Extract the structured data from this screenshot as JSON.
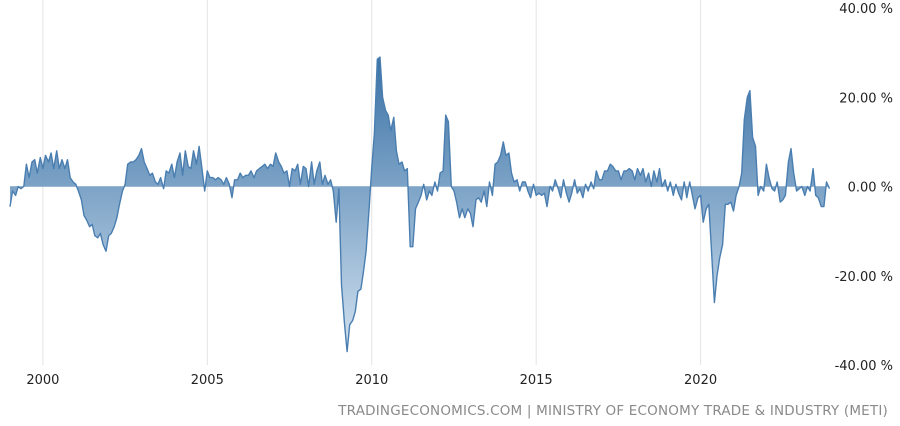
{
  "colors": {
    "line": "#4a7eb0",
    "fill_top": "#2f6aa1",
    "fill_bottom": "#cfe0ef",
    "grid": "#e3e3e3",
    "text": "#222222",
    "source": "#8a8a8a"
  },
  "source_text": "TRADINGECONOMICS.COM | MINISTRY OF ECONOMY TRADE & INDUSTRY (METI)",
  "chart_data": {
    "type": "area",
    "title": "",
    "xlabel": "",
    "ylabel": "",
    "xlim": [
      1999.0,
      2024.3
    ],
    "ylim": [
      -40,
      40
    ],
    "grid": true,
    "grid_axis": "x",
    "y_axis_position": "right",
    "legend": "none",
    "x_ticks": [
      {
        "value": 2000,
        "label": "2000"
      },
      {
        "value": 2005,
        "label": "2005"
      },
      {
        "value": 2010,
        "label": "2010"
      },
      {
        "value": 2015,
        "label": "2015"
      },
      {
        "value": 2020,
        "label": "2020"
      }
    ],
    "y_ticks": [
      {
        "value": 40,
        "label": "40.00 %"
      },
      {
        "value": 20,
        "label": "20.00 %"
      },
      {
        "value": 0,
        "label": "0.00 %"
      },
      {
        "value": -20,
        "label": "-20.00 %"
      },
      {
        "value": -40,
        "label": "-40.00 %"
      }
    ],
    "series": [
      {
        "points": [
          [
            1999.0,
            -4.5
          ],
          [
            1999.08,
            -1
          ],
          [
            1999.17,
            -2
          ],
          [
            1999.25,
            0
          ],
          [
            1999.33,
            -0.5
          ],
          [
            1999.42,
            0
          ],
          [
            1999.5,
            5
          ],
          [
            1999.58,
            2
          ],
          [
            1999.67,
            5.5
          ],
          [
            1999.75,
            6
          ],
          [
            1999.83,
            3
          ],
          [
            1999.92,
            6.5
          ],
          [
            2000.0,
            4
          ],
          [
            2000.08,
            7
          ],
          [
            2000.17,
            5.5
          ],
          [
            2000.25,
            7.5
          ],
          [
            2000.33,
            4
          ],
          [
            2000.42,
            8
          ],
          [
            2000.5,
            4
          ],
          [
            2000.58,
            6
          ],
          [
            2000.67,
            4
          ],
          [
            2000.75,
            6
          ],
          [
            2000.83,
            2
          ],
          [
            2000.92,
            1
          ],
          [
            2001.0,
            0.5
          ],
          [
            2001.08,
            -1
          ],
          [
            2001.17,
            -3
          ],
          [
            2001.25,
            -6.5
          ],
          [
            2001.33,
            -7.5
          ],
          [
            2001.42,
            -9
          ],
          [
            2001.5,
            -8.5
          ],
          [
            2001.58,
            -11
          ],
          [
            2001.67,
            -11.5
          ],
          [
            2001.75,
            -10.5
          ],
          [
            2001.83,
            -13
          ],
          [
            2001.92,
            -14.5
          ],
          [
            2002.0,
            -11
          ],
          [
            2002.08,
            -10.5
          ],
          [
            2002.17,
            -9
          ],
          [
            2002.25,
            -7
          ],
          [
            2002.33,
            -4
          ],
          [
            2002.42,
            -1
          ],
          [
            2002.5,
            0.5
          ],
          [
            2002.58,
            5
          ],
          [
            2002.67,
            5.5
          ],
          [
            2002.75,
            5.5
          ],
          [
            2002.83,
            6
          ],
          [
            2002.92,
            7
          ],
          [
            2003.0,
            8.5
          ],
          [
            2003.08,
            5.5
          ],
          [
            2003.17,
            4
          ],
          [
            2003.25,
            2.5
          ],
          [
            2003.33,
            3
          ],
          [
            2003.42,
            1
          ],
          [
            2003.5,
            0.5
          ],
          [
            2003.58,
            2
          ],
          [
            2003.67,
            -0.5
          ],
          [
            2003.75,
            3.5
          ],
          [
            2003.83,
            3
          ],
          [
            2003.92,
            5
          ],
          [
            2004.0,
            2
          ],
          [
            2004.08,
            5.5
          ],
          [
            2004.17,
            7.5
          ],
          [
            2004.25,
            2.5
          ],
          [
            2004.33,
            8
          ],
          [
            2004.42,
            4.5
          ],
          [
            2004.5,
            4
          ],
          [
            2004.58,
            8
          ],
          [
            2004.67,
            5
          ],
          [
            2004.75,
            9
          ],
          [
            2004.83,
            4.5
          ],
          [
            2004.92,
            -1
          ],
          [
            2005.0,
            3.5
          ],
          [
            2005.08,
            2
          ],
          [
            2005.17,
            2
          ],
          [
            2005.25,
            1.5
          ],
          [
            2005.33,
            2
          ],
          [
            2005.42,
            1.5
          ],
          [
            2005.5,
            0.5
          ],
          [
            2005.58,
            2
          ],
          [
            2005.67,
            0.5
          ],
          [
            2005.75,
            -2.5
          ],
          [
            2005.83,
            1.5
          ],
          [
            2005.92,
            1.5
          ],
          [
            2006.0,
            3
          ],
          [
            2006.08,
            2
          ],
          [
            2006.17,
            2.5
          ],
          [
            2006.25,
            2.5
          ],
          [
            2006.33,
            3.5
          ],
          [
            2006.42,
            2
          ],
          [
            2006.5,
            3.5
          ],
          [
            2006.58,
            4
          ],
          [
            2006.67,
            4.5
          ],
          [
            2006.75,
            5
          ],
          [
            2006.83,
            4
          ],
          [
            2006.92,
            5
          ],
          [
            2007.0,
            4.5
          ],
          [
            2007.08,
            7.5
          ],
          [
            2007.17,
            5.5
          ],
          [
            2007.25,
            4.5
          ],
          [
            2007.33,
            3
          ],
          [
            2007.42,
            3.5
          ],
          [
            2007.5,
            0
          ],
          [
            2007.58,
            4
          ],
          [
            2007.67,
            3.5
          ],
          [
            2007.75,
            5
          ],
          [
            2007.83,
            0.5
          ],
          [
            2007.92,
            4.5
          ],
          [
            2008.0,
            4
          ],
          [
            2008.08,
            0
          ],
          [
            2008.17,
            5.5
          ],
          [
            2008.25,
            0.5
          ],
          [
            2008.33,
            3.5
          ],
          [
            2008.42,
            5.5
          ],
          [
            2008.5,
            0.5
          ],
          [
            2008.58,
            2.5
          ],
          [
            2008.67,
            0.5
          ],
          [
            2008.75,
            1.5
          ],
          [
            2008.83,
            -1
          ],
          [
            2008.92,
            -8
          ],
          [
            2009.0,
            -0.5
          ],
          [
            2009.08,
            -22
          ],
          [
            2009.17,
            -30.5
          ],
          [
            2009.25,
            -37
          ],
          [
            2009.33,
            -31
          ],
          [
            2009.42,
            -30
          ],
          [
            2009.5,
            -28
          ],
          [
            2009.58,
            -23.5
          ],
          [
            2009.67,
            -23
          ],
          [
            2009.75,
            -19
          ],
          [
            2009.83,
            -14.5
          ],
          [
            2009.92,
            -5
          ],
          [
            2010.0,
            4
          ],
          [
            2010.08,
            12
          ],
          [
            2010.17,
            28.5
          ],
          [
            2010.25,
            29
          ],
          [
            2010.33,
            20
          ],
          [
            2010.42,
            17
          ],
          [
            2010.5,
            16
          ],
          [
            2010.58,
            12.5
          ],
          [
            2010.67,
            15.5
          ],
          [
            2010.75,
            8
          ],
          [
            2010.83,
            5
          ],
          [
            2010.92,
            5.5
          ],
          [
            2011.0,
            3.5
          ],
          [
            2011.08,
            4
          ],
          [
            2011.17,
            -13.5
          ],
          [
            2011.25,
            -13.5
          ],
          [
            2011.33,
            -5
          ],
          [
            2011.42,
            -3.5
          ],
          [
            2011.5,
            -2
          ],
          [
            2011.58,
            0.5
          ],
          [
            2011.67,
            -3
          ],
          [
            2011.75,
            -1
          ],
          [
            2011.83,
            -2
          ],
          [
            2011.92,
            1
          ],
          [
            2012.0,
            -1
          ],
          [
            2012.08,
            3
          ],
          [
            2012.17,
            3.5
          ],
          [
            2012.25,
            16
          ],
          [
            2012.33,
            14.5
          ],
          [
            2012.42,
            0
          ],
          [
            2012.5,
            -1
          ],
          [
            2012.58,
            -3.5
          ],
          [
            2012.67,
            -7
          ],
          [
            2012.75,
            -5
          ],
          [
            2012.83,
            -7
          ],
          [
            2012.92,
            -5
          ],
          [
            2013.0,
            -6
          ],
          [
            2013.08,
            -9
          ],
          [
            2013.17,
            -3
          ],
          [
            2013.25,
            -2.5
          ],
          [
            2013.33,
            -3.5
          ],
          [
            2013.42,
            -1
          ],
          [
            2013.5,
            -4.5
          ],
          [
            2013.58,
            1
          ],
          [
            2013.67,
            -2
          ],
          [
            2013.75,
            5
          ],
          [
            2013.83,
            5.5
          ],
          [
            2013.92,
            7
          ],
          [
            2014.0,
            10
          ],
          [
            2014.08,
            7
          ],
          [
            2014.17,
            7.5
          ],
          [
            2014.25,
            3
          ],
          [
            2014.33,
            1
          ],
          [
            2014.42,
            1.5
          ],
          [
            2014.5,
            -1
          ],
          [
            2014.58,
            1
          ],
          [
            2014.67,
            1
          ],
          [
            2014.75,
            -1
          ],
          [
            2014.83,
            -2.5
          ],
          [
            2014.92,
            0.5
          ],
          [
            2015.0,
            -2
          ],
          [
            2015.08,
            -1.5
          ],
          [
            2015.17,
            -2
          ],
          [
            2015.25,
            -1.5
          ],
          [
            2015.33,
            -4.5
          ],
          [
            2015.42,
            0
          ],
          [
            2015.5,
            -1
          ],
          [
            2015.58,
            1.5
          ],
          [
            2015.67,
            -0.5
          ],
          [
            2015.75,
            -2.5
          ],
          [
            2015.83,
            1.5
          ],
          [
            2015.92,
            -1.5
          ],
          [
            2016.0,
            -3.5
          ],
          [
            2016.08,
            -1.5
          ],
          [
            2016.17,
            1.5
          ],
          [
            2016.25,
            -1.5
          ],
          [
            2016.33,
            -0.5
          ],
          [
            2016.42,
            -2.5
          ],
          [
            2016.5,
            0.5
          ],
          [
            2016.58,
            -1
          ],
          [
            2016.67,
            1
          ],
          [
            2016.75,
            -0.5
          ],
          [
            2016.83,
            3.5
          ],
          [
            2016.92,
            1.5
          ],
          [
            2017.0,
            1.5
          ],
          [
            2017.08,
            3.5
          ],
          [
            2017.17,
            3.5
          ],
          [
            2017.25,
            5
          ],
          [
            2017.33,
            4.5
          ],
          [
            2017.42,
            3.5
          ],
          [
            2017.5,
            3.5
          ],
          [
            2017.58,
            1.5
          ],
          [
            2017.67,
            3.5
          ],
          [
            2017.75,
            3.5
          ],
          [
            2017.83,
            4
          ],
          [
            2017.92,
            3.5
          ],
          [
            2018.0,
            1.5
          ],
          [
            2018.08,
            4
          ],
          [
            2018.17,
            2.5
          ],
          [
            2018.25,
            4
          ],
          [
            2018.33,
            1
          ],
          [
            2018.42,
            3
          ],
          [
            2018.5,
            0
          ],
          [
            2018.58,
            3.5
          ],
          [
            2018.67,
            1
          ],
          [
            2018.75,
            4
          ],
          [
            2018.83,
            0
          ],
          [
            2018.92,
            1.5
          ],
          [
            2019.0,
            -1
          ],
          [
            2019.08,
            1
          ],
          [
            2019.17,
            -2
          ],
          [
            2019.25,
            0.5
          ],
          [
            2019.33,
            -1.5
          ],
          [
            2019.42,
            -3
          ],
          [
            2019.5,
            1
          ],
          [
            2019.58,
            -2.5
          ],
          [
            2019.67,
            1
          ],
          [
            2019.75,
            -2
          ],
          [
            2019.83,
            -5
          ],
          [
            2019.92,
            -2.5
          ],
          [
            2020.0,
            -2
          ],
          [
            2020.08,
            -8
          ],
          [
            2020.17,
            -5
          ],
          [
            2020.25,
            -4
          ],
          [
            2020.33,
            -14
          ],
          [
            2020.42,
            -26
          ],
          [
            2020.5,
            -20
          ],
          [
            2020.58,
            -16
          ],
          [
            2020.67,
            -13
          ],
          [
            2020.75,
            -4
          ],
          [
            2020.83,
            -4
          ],
          [
            2020.92,
            -3.5
          ],
          [
            2021.0,
            -5.5
          ],
          [
            2021.08,
            -2
          ],
          [
            2021.17,
            0
          ],
          [
            2021.25,
            3
          ],
          [
            2021.33,
            15
          ],
          [
            2021.42,
            20
          ],
          [
            2021.5,
            21.5
          ],
          [
            2021.58,
            11
          ],
          [
            2021.67,
            9
          ],
          [
            2021.75,
            -2
          ],
          [
            2021.83,
            0
          ],
          [
            2021.92,
            -1
          ],
          [
            2022.0,
            5
          ],
          [
            2022.08,
            2
          ],
          [
            2022.17,
            -0.5
          ],
          [
            2022.25,
            -1
          ],
          [
            2022.33,
            1
          ],
          [
            2022.42,
            -3.5
          ],
          [
            2022.5,
            -3
          ],
          [
            2022.58,
            -2
          ],
          [
            2022.67,
            5.5
          ],
          [
            2022.75,
            8.5
          ],
          [
            2022.83,
            3
          ],
          [
            2022.92,
            -1
          ],
          [
            2023.0,
            -0.5
          ],
          [
            2023.08,
            0
          ],
          [
            2023.17,
            -2
          ],
          [
            2023.25,
            0
          ],
          [
            2023.33,
            -1
          ],
          [
            2023.42,
            4
          ],
          [
            2023.5,
            -2
          ],
          [
            2023.58,
            -2.5
          ],
          [
            2023.67,
            -4.5
          ],
          [
            2023.75,
            -4.5
          ],
          [
            2023.83,
            1
          ],
          [
            2023.92,
            -0.5
          ]
        ]
      }
    ]
  }
}
